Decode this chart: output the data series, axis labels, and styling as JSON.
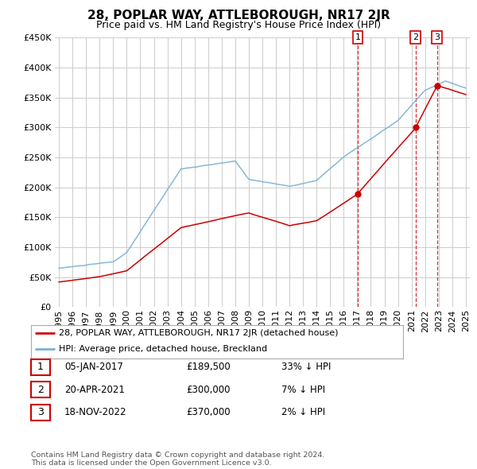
{
  "title": "28, POPLAR WAY, ATTLEBOROUGH, NR17 2JR",
  "subtitle": "Price paid vs. HM Land Registry's House Price Index (HPI)",
  "ylim": [
    0,
    450000
  ],
  "yticks": [
    0,
    50000,
    100000,
    150000,
    200000,
    250000,
    300000,
    350000,
    400000,
    450000
  ],
  "sale_dates": [
    2017.03,
    2021.3,
    2022.88
  ],
  "sale_prices": [
    189500,
    300000,
    370000
  ],
  "sale_labels": [
    "1",
    "2",
    "3"
  ],
  "sale_annotations": [
    {
      "label": "1",
      "date": "05-JAN-2017",
      "price": "£189,500",
      "change": "33% ↓ HPI"
    },
    {
      "label": "2",
      "date": "20-APR-2021",
      "price": "£300,000",
      "change": "7% ↓ HPI"
    },
    {
      "label": "3",
      "date": "18-NOV-2022",
      "price": "£370,000",
      "change": "2% ↓ HPI"
    }
  ],
  "line_color_red": "#cc0000",
  "line_color_blue": "#7ab0d4",
  "vline_color": "#cc0000",
  "grid_color": "#cccccc",
  "background_color": "#ffffff",
  "legend_label_red": "28, POPLAR WAY, ATTLEBOROUGH, NR17 2JR (detached house)",
  "legend_label_blue": "HPI: Average price, detached house, Breckland",
  "footer": "Contains HM Land Registry data © Crown copyright and database right 2024.\nThis data is licensed under the Open Government Licence v3.0.",
  "title_fontsize": 11,
  "subtitle_fontsize": 9,
  "axis_fontsize": 8
}
